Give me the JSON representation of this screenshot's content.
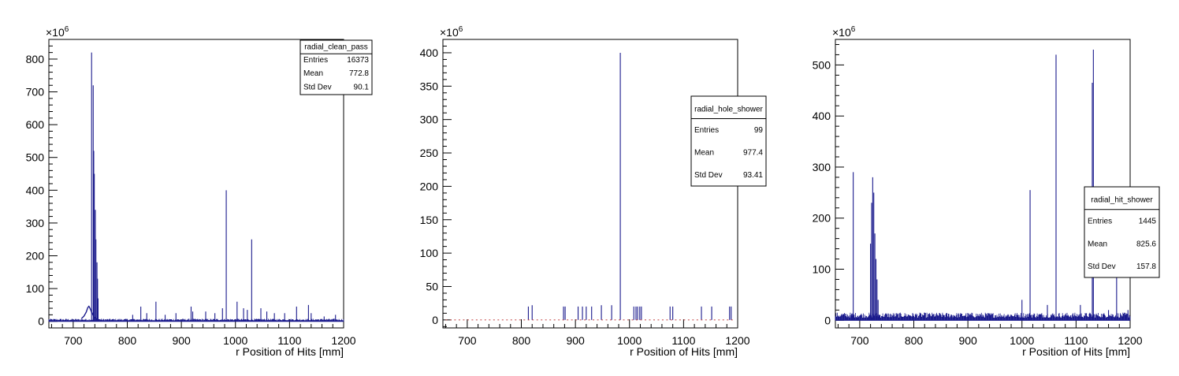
{
  "chart_data": [
    {
      "type": "histogram",
      "xlabel": "r Position of Hits [mm]",
      "exponent_label": "×10",
      "exponent_power": "6",
      "xlim": [
        655,
        1200
      ],
      "ylim": [
        -20,
        860
      ],
      "xticks": [
        700,
        800,
        900,
        1000,
        1100,
        1200
      ],
      "yticks": [
        0,
        100,
        200,
        300,
        400,
        500,
        600,
        700,
        800
      ],
      "color": "#1a1a8c",
      "stats": {
        "title": "radial_clean_pass",
        "rows": [
          {
            "label": "Entries",
            "value": "16373"
          },
          {
            "label": "Mean",
            "value": "772.8"
          },
          {
            "label": "Std Dev",
            "value": "90.1"
          }
        ]
      },
      "baseline": {
        "from": 655,
        "to": 1200,
        "level": 3,
        "noise": 5
      },
      "bump": [
        [
          715,
          8
        ],
        [
          720,
          16
        ],
        [
          724,
          28
        ],
        [
          727,
          42
        ],
        [
          729,
          46
        ],
        [
          731,
          40
        ],
        [
          734,
          28
        ],
        [
          737,
          18
        ],
        [
          740,
          10
        ],
        [
          745,
          6
        ],
        [
          750,
          4
        ]
      ],
      "spikes": [
        [
          734,
          820,
          0
        ],
        [
          737,
          720,
          0
        ],
        [
          738,
          520,
          0
        ],
        [
          739,
          450,
          0
        ],
        [
          741,
          340,
          0
        ],
        [
          742,
          250,
          0
        ],
        [
          744,
          180,
          0
        ],
        [
          745,
          130,
          0
        ],
        [
          746,
          70,
          0
        ],
        [
          983,
          400,
          0
        ],
        [
          1030,
          250,
          0
        ],
        [
          1003,
          60,
          0
        ],
        [
          1047,
          40,
          0
        ],
        [
          1058,
          30,
          0
        ],
        [
          1072,
          25,
          0
        ],
        [
          1113,
          45,
          0
        ],
        [
          1135,
          50,
          0
        ],
        [
          1140,
          25,
          0
        ],
        [
          1185,
          20,
          0
        ],
        [
          810,
          20,
          0
        ],
        [
          825,
          45,
          0
        ],
        [
          836,
          25,
          0
        ],
        [
          853,
          60,
          0
        ],
        [
          870,
          20,
          0
        ],
        [
          890,
          25,
          0
        ],
        [
          918,
          45,
          0
        ],
        [
          921,
          30,
          0
        ],
        [
          945,
          30,
          0
        ],
        [
          962,
          25,
          0
        ],
        [
          976,
          40,
          0
        ],
        [
          1015,
          40,
          0
        ],
        [
          1022,
          35,
          0
        ],
        [
          1091,
          25,
          0
        ],
        [
          1164,
          15,
          0
        ]
      ]
    },
    {
      "type": "histogram",
      "xlabel": "r Position of Hits [mm]",
      "exponent_label": "×10",
      "exponent_power": "6",
      "xlim": [
        655,
        1200
      ],
      "ylim": [
        -12,
        420
      ],
      "xticks": [
        700,
        800,
        900,
        1000,
        1100,
        1200
      ],
      "yticks": [
        0,
        50,
        100,
        150,
        200,
        250,
        300,
        350,
        400
      ],
      "color": "#1a1a8c",
      "stats": {
        "title": "radial_hole_shower",
        "rows": [
          {
            "label": "Entries",
            "value": "99"
          },
          {
            "label": "Mean",
            "value": "977.4"
          },
          {
            "label": "Std Dev",
            "value": "93.41"
          }
        ]
      },
      "baseline": null,
      "bump": [],
      "spikes": [
        [
          983,
          400,
          0
        ],
        [
          813,
          20,
          0
        ],
        [
          820,
          22,
          0
        ],
        [
          878,
          20,
          0
        ],
        [
          881,
          20,
          0
        ],
        [
          905,
          20,
          0
        ],
        [
          913,
          20,
          0
        ],
        [
          920,
          20,
          0
        ],
        [
          930,
          20,
          0
        ],
        [
          948,
          22,
          0
        ],
        [
          967,
          22,
          0
        ],
        [
          1008,
          20,
          0
        ],
        [
          1012,
          20,
          0
        ],
        [
          1015,
          20,
          0
        ],
        [
          1019,
          20,
          0
        ],
        [
          1022,
          20,
          0
        ],
        [
          1075,
          20,
          0
        ],
        [
          1080,
          20,
          0
        ],
        [
          1133,
          20,
          0
        ],
        [
          1152,
          20,
          0
        ],
        [
          1185,
          20,
          0
        ],
        [
          1188,
          20,
          0
        ]
      ]
    },
    {
      "type": "histogram",
      "xlabel": "r Position of Hits [mm]",
      "exponent_label": "×10",
      "exponent_power": "6",
      "xlim": [
        655,
        1200
      ],
      "ylim": [
        -15,
        550
      ],
      "xticks": [
        700,
        800,
        900,
        1000,
        1100,
        1200
      ],
      "yticks": [
        0,
        100,
        200,
        300,
        400,
        500
      ],
      "color": "#1a1a8c",
      "stats": {
        "title": "radial_hit_shower",
        "rows": [
          {
            "label": "Entries",
            "value": "1445"
          },
          {
            "label": "Mean",
            "value": "825.6"
          },
          {
            "label": "Std Dev",
            "value": "157.8"
          }
        ]
      },
      "baseline": {
        "from": 655,
        "to": 1200,
        "level": 5,
        "noise": 10
      },
      "bump": [],
      "spikes": [
        [
          688,
          290,
          0
        ],
        [
          720,
          150,
          0
        ],
        [
          722,
          230,
          0
        ],
        [
          724,
          280,
          0
        ],
        [
          726,
          250,
          0
        ],
        [
          728,
          170,
          0
        ],
        [
          730,
          120,
          0
        ],
        [
          732,
          80,
          0
        ],
        [
          734,
          40,
          0
        ],
        [
          1015,
          255,
          0
        ],
        [
          1063,
          520,
          0
        ],
        [
          1130,
          465,
          0
        ],
        [
          1132,
          530,
          0
        ],
        [
          1175,
          240,
          0
        ],
        [
          1000,
          40,
          0
        ],
        [
          1047,
          30,
          0
        ],
        [
          1108,
          30,
          0
        ],
        [
          1160,
          20,
          0
        ],
        [
          1196,
          20,
          0
        ]
      ]
    }
  ]
}
